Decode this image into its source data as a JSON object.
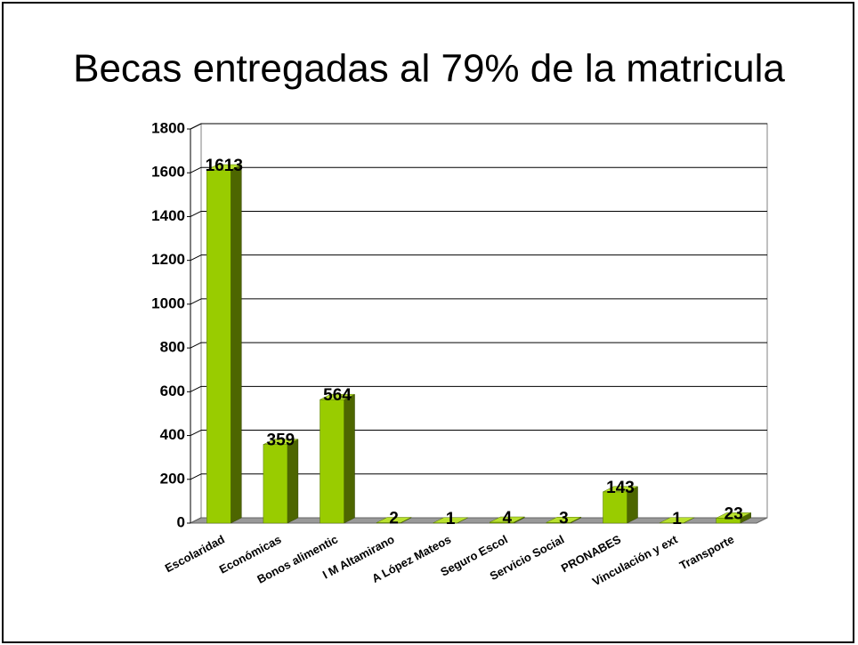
{
  "chart_data": {
    "type": "bar",
    "title": "Becas entregadas al 79% de la matricula",
    "categories": [
      "Escolaridad",
      "Económicas",
      "Bonos alimentic",
      "I M Altamirano",
      "A López Mateos",
      "Seguro Escol",
      "Servicio Social",
      "PRONABES",
      "Vinculación y ext",
      "Transporte"
    ],
    "values": [
      1613,
      359,
      564,
      2,
      1,
      4,
      3,
      143,
      1,
      23
    ],
    "color": "#99cc00",
    "ylim": [
      0,
      1800
    ],
    "yticks": [
      0,
      200,
      400,
      600,
      800,
      1000,
      1200,
      1400,
      1600,
      1800
    ],
    "grid": true
  }
}
